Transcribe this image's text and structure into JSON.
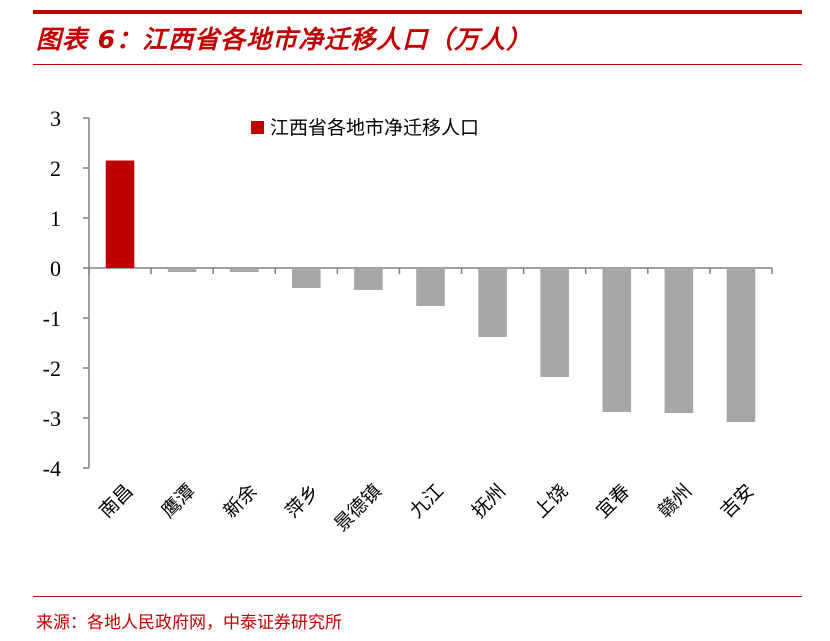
{
  "header": {
    "title": "图表 6：江西省各地市净迁移人口（万人）"
  },
  "footer": {
    "source": "来源：各地人民政府网，中泰证券研究所"
  },
  "colors": {
    "accent": "#c00000",
    "highlight_bar": "#c00000",
    "default_bar": "#a6a6a6"
  },
  "chart_data": {
    "type": "bar",
    "title": "",
    "xlabel": "",
    "ylabel": "",
    "ylim": [
      -4,
      3
    ],
    "yticks": [
      "3",
      "2",
      "1",
      "0",
      "-1",
      "-2",
      "-3",
      "-4"
    ],
    "yticks_values": [
      3,
      2,
      1,
      0,
      -1,
      -2,
      -3,
      -4
    ],
    "grid": false,
    "legend_position": "top-right",
    "categories": [
      "南昌",
      "鹰潭",
      "新余",
      "萍乡",
      "景德镇",
      "九江",
      "抚州",
      "上饶",
      "宜春",
      "赣州",
      "吉安"
    ],
    "series": [
      {
        "name": "江西省各地市净迁移人口",
        "values": [
          2.15,
          -0.08,
          -0.08,
          -0.4,
          -0.44,
          -0.76,
          -1.38,
          -2.18,
          -2.88,
          -2.9,
          -3.08
        ]
      }
    ],
    "highlight_index": 0
  }
}
